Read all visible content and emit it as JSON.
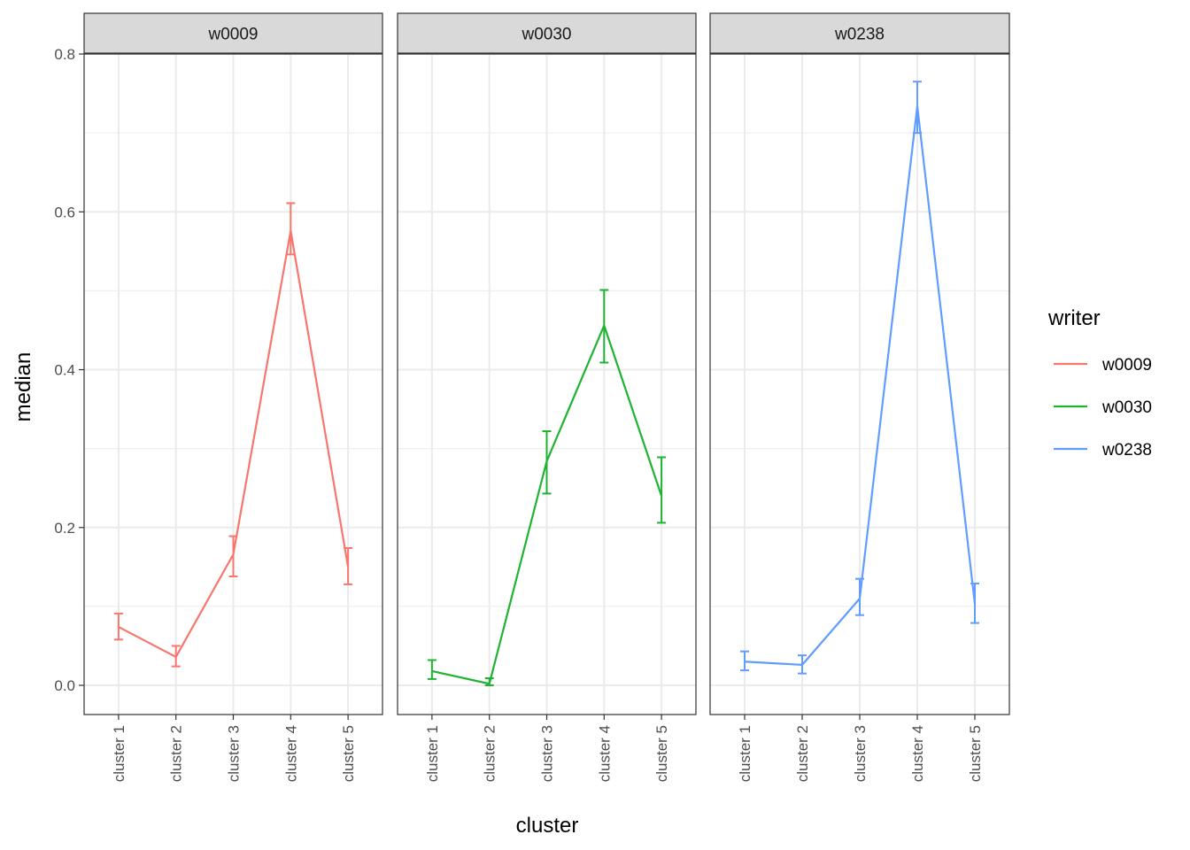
{
  "chart_data": {
    "type": "line",
    "facet_by": "writer",
    "xlabel": "cluster",
    "ylabel": "median",
    "categories": [
      "cluster 1",
      "cluster 2",
      "cluster 3",
      "cluster 4",
      "cluster 5"
    ],
    "ylim": [
      -0.037,
      0.8
    ],
    "yticks": [
      0.0,
      0.2,
      0.4,
      0.6,
      0.8
    ],
    "ytick_labels": [
      "0.0",
      "0.2",
      "0.4",
      "0.6",
      "0.8"
    ],
    "grid": true,
    "error_bars": true,
    "legend": {
      "title": "writer",
      "position": "right"
    },
    "series": [
      {
        "name": "w0009",
        "color": "#F8766D",
        "values": [
          0.074,
          0.036,
          0.166,
          0.576,
          0.15
        ],
        "lower": [
          0.058,
          0.024,
          0.138,
          0.546,
          0.128
        ],
        "upper": [
          0.091,
          0.05,
          0.189,
          0.611,
          0.174
        ]
      },
      {
        "name": "w0030",
        "color": "#1FB331",
        "values": [
          0.018,
          0.002,
          0.284,
          0.456,
          0.24
        ],
        "lower": [
          0.008,
          0.0,
          0.243,
          0.409,
          0.206
        ],
        "upper": [
          0.032,
          0.009,
          0.322,
          0.501,
          0.289
        ]
      },
      {
        "name": "w0238",
        "color": "#619CFF",
        "values": [
          0.03,
          0.026,
          0.11,
          0.734,
          0.103
        ],
        "lower": [
          0.019,
          0.015,
          0.089,
          0.7,
          0.079
        ],
        "upper": [
          0.043,
          0.038,
          0.135,
          0.765,
          0.129
        ]
      }
    ]
  }
}
